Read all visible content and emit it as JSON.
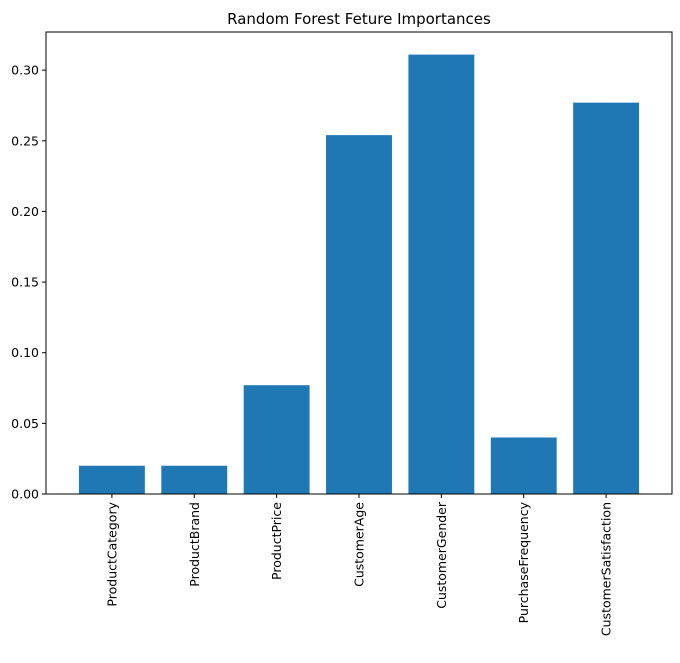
{
  "chart_data": {
    "type": "bar",
    "title": "Random Forest Feture Importances",
    "xlabel": "",
    "ylabel": "",
    "categories": [
      "ProductCategory",
      "ProductBrand",
      "ProductPrice",
      "CustomerAge",
      "CustomerGender",
      "PurchaseFrequency",
      "CustomerSatisfaction"
    ],
    "values": [
      0.02,
      0.02,
      0.077,
      0.254,
      0.311,
      0.04,
      0.277
    ],
    "ylim": [
      0,
      0.327
    ],
    "yticks": [
      "0.00",
      "0.05",
      "0.10",
      "0.15",
      "0.20",
      "0.25",
      "0.30"
    ],
    "ytick_values": [
      0,
      0.05,
      0.1,
      0.15,
      0.2,
      0.25,
      0.3
    ],
    "grid": false,
    "bar_color": "#1f77b4"
  }
}
